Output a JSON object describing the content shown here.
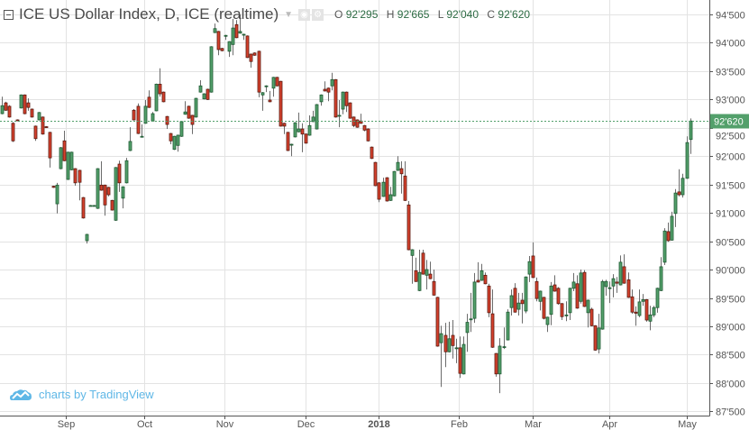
{
  "header": {
    "title": "ICE US Dollar Index, D, ICE (realtime)",
    "ohlc": [
      {
        "label": "O",
        "value": "92'295"
      },
      {
        "label": "H",
        "value": "92'665"
      },
      {
        "label": "L",
        "value": "92'040"
      },
      {
        "label": "C",
        "value": "92'620"
      }
    ]
  },
  "branding": {
    "text": "charts by TradingView"
  },
  "colors": {
    "up": "#53a06b",
    "up_border": "#1f5a33",
    "down": "#d6412d",
    "down_border": "#5a1a10",
    "wick": "#6b6b6b",
    "last_line": "#53a06b",
    "grid": "#e3e3e3"
  },
  "chart_data": {
    "type": "candlestick",
    "title": "ICE US Dollar Index, D, ICE (realtime)",
    "ylim": [
      87.5,
      94.6
    ],
    "y_ticks": [
      {
        "value": 94.5,
        "label": "94'500"
      },
      {
        "value": 94.0,
        "label": "94'000"
      },
      {
        "value": 93.5,
        "label": "93'500"
      },
      {
        "value": 93.0,
        "label": "93'000"
      },
      {
        "value": 92.5,
        "label": "92'500"
      },
      {
        "value": 92.0,
        "label": "92'000"
      },
      {
        "value": 91.5,
        "label": "91'500"
      },
      {
        "value": 91.0,
        "label": "91'000"
      },
      {
        "value": 90.5,
        "label": "90'500"
      },
      {
        "value": 90.0,
        "label": "90'000"
      },
      {
        "value": 89.5,
        "label": "89'500"
      },
      {
        "value": 89.0,
        "label": "89'000"
      },
      {
        "value": 88.5,
        "label": "88'500"
      },
      {
        "value": 88.0,
        "label": "88'000"
      },
      {
        "value": 87.5,
        "label": "87'500"
      }
    ],
    "x_ticks": [
      {
        "index": 17.5,
        "label": "Sep",
        "bold": false
      },
      {
        "index": 38.8,
        "label": "Oct",
        "bold": false
      },
      {
        "index": 60.8,
        "label": "Nov",
        "bold": false
      },
      {
        "index": 82.9,
        "label": "Dec",
        "bold": false
      },
      {
        "index": 102.8,
        "label": "2018",
        "bold": true
      },
      {
        "index": 124.9,
        "label": "Feb",
        "bold": false
      },
      {
        "index": 145.1,
        "label": "Mar",
        "bold": false
      },
      {
        "index": 166.0,
        "label": "Apr",
        "bold": false
      },
      {
        "index": 187.0,
        "label": "May",
        "bold": false
      }
    ],
    "last_price": {
      "value": 92.62,
      "label": "92'620"
    },
    "candles_format": [
      "open",
      "high",
      "low",
      "close"
    ],
    "candles": [
      [
        92.75,
        93.05,
        92.74,
        92.89
      ],
      [
        92.94,
        92.96,
        92.8,
        92.81
      ],
      [
        92.88,
        92.9,
        92.68,
        92.69
      ],
      [
        92.58,
        92.6,
        92.25,
        92.27
      ],
      [
        92.64,
        92.65,
        92.62,
        92.63
      ],
      [
        92.85,
        93.09,
        92.84,
        93.08
      ],
      [
        93.08,
        93.09,
        92.74,
        92.75
      ],
      [
        92.94,
        93.02,
        92.8,
        92.86
      ],
      [
        92.83,
        92.84,
        92.68,
        92.69
      ],
      [
        92.53,
        92.54,
        92.27,
        92.31
      ],
      [
        92.64,
        92.78,
        92.63,
        92.77
      ],
      [
        92.69,
        92.7,
        92.38,
        92.39
      ],
      [
        92.52,
        92.53,
        92.5,
        92.51
      ],
      [
        92.42,
        92.43,
        91.8,
        91.97
      ],
      [
        91.47,
        91.48,
        91.44,
        91.45
      ],
      [
        91.16,
        91.53,
        90.99,
        91.49
      ],
      [
        91.78,
        92.16,
        91.77,
        92.15
      ],
      [
        92.27,
        92.45,
        91.91,
        91.92
      ],
      [
        91.59,
        92.08,
        91.58,
        92.07
      ],
      [
        91.76,
        92.08,
        91.75,
        92.07
      ],
      [
        91.78,
        91.79,
        91.48,
        91.53
      ],
      [
        91.75,
        91.76,
        91.22,
        91.54
      ],
      [
        91.27,
        91.28,
        90.9,
        90.91
      ],
      [
        90.51,
        90.63,
        90.46,
        90.62
      ],
      [
        91.13,
        91.14,
        91.12,
        91.13
      ],
      [
        91.13,
        91.14,
        91.12,
        91.13
      ],
      [
        91.08,
        91.79,
        91.07,
        91.78
      ],
      [
        91.49,
        91.91,
        91.39,
        91.4
      ],
      [
        91.49,
        91.5,
        90.95,
        91.14
      ],
      [
        91.45,
        91.46,
        91.29,
        91.32
      ],
      [
        91.22,
        91.23,
        91.04,
        91.05
      ],
      [
        90.87,
        91.81,
        90.86,
        91.8
      ],
      [
        91.86,
        91.92,
        91.37,
        91.53
      ],
      [
        91.26,
        91.47,
        91.08,
        91.46
      ],
      [
        91.53,
        91.97,
        91.52,
        91.92
      ],
      [
        92.1,
        92.51,
        92.09,
        92.26
      ],
      [
        92.81,
        92.83,
        92.63,
        92.64
      ],
      [
        92.88,
        92.93,
        92.39,
        92.4
      ],
      [
        92.35,
        92.56,
        92.34,
        92.35
      ],
      [
        92.58,
        92.99,
        92.57,
        92.88
      ],
      [
        93.04,
        93.16,
        92.85,
        92.86
      ],
      [
        92.62,
        92.78,
        92.61,
        92.75
      ],
      [
        92.8,
        93.28,
        92.79,
        93.27
      ],
      [
        93.27,
        93.55,
        93.05,
        93.1
      ],
      [
        93.13,
        93.14,
        92.95,
        92.96
      ],
      [
        92.7,
        92.71,
        92.48,
        92.56
      ],
      [
        92.4,
        92.41,
        92.21,
        92.27
      ],
      [
        92.12,
        92.36,
        92.11,
        92.35
      ],
      [
        92.19,
        92.38,
        92.08,
        92.37
      ],
      [
        92.35,
        92.62,
        92.34,
        92.61
      ],
      [
        92.74,
        92.97,
        92.73,
        92.78
      ],
      [
        92.88,
        92.89,
        92.66,
        92.67
      ],
      [
        92.72,
        92.73,
        92.39,
        92.56
      ],
      [
        92.69,
        93.03,
        92.68,
        93.02
      ],
      [
        93.13,
        93.34,
        93.12,
        93.24
      ],
      [
        93.01,
        93.11,
        93.0,
        93.1
      ],
      [
        93.18,
        93.19,
        92.99,
        93.0
      ],
      [
        93.13,
        93.94,
        93.12,
        93.93
      ],
      [
        94.18,
        94.34,
        94.17,
        94.25
      ],
      [
        94.2,
        94.21,
        93.78,
        93.88
      ],
      [
        93.9,
        93.91,
        93.85,
        93.86
      ],
      [
        94.13,
        94.14,
        94.05,
        94.13
      ],
      [
        93.85,
        94.03,
        93.75,
        94.02
      ],
      [
        93.97,
        94.42,
        93.78,
        94.26
      ],
      [
        94.32,
        94.4,
        94.08,
        94.09
      ],
      [
        94.17,
        94.5,
        94.16,
        94.2
      ],
      [
        94.15,
        94.16,
        94.05,
        94.15
      ],
      [
        94.12,
        94.13,
        93.73,
        93.74
      ],
      [
        93.8,
        93.81,
        93.56,
        93.67
      ],
      [
        93.82,
        93.83,
        93.77,
        93.78
      ],
      [
        93.85,
        93.86,
        93.04,
        93.13
      ],
      [
        93.08,
        93.13,
        92.8,
        93.12
      ],
      [
        93.24,
        93.25,
        93.13,
        93.24
      ],
      [
        92.99,
        93.15,
        92.95,
        92.96
      ],
      [
        93.2,
        93.4,
        93.05,
        93.39
      ],
      [
        93.39,
        93.4,
        93.23,
        93.24
      ],
      [
        93.32,
        93.33,
        92.52,
        92.53
      ],
      [
        92.58,
        92.59,
        92.39,
        92.53
      ],
      [
        92.42,
        92.43,
        92.09,
        92.1
      ],
      [
        92.21,
        92.22,
        92.0,
        92.21
      ],
      [
        92.34,
        92.6,
        92.33,
        92.59
      ],
      [
        92.43,
        92.77,
        92.42,
        92.48
      ],
      [
        92.48,
        92.58,
        92.07,
        92.39
      ],
      [
        92.39,
        92.4,
        92.22,
        92.23
      ],
      [
        92.37,
        92.72,
        92.36,
        92.54
      ],
      [
        92.61,
        92.8,
        92.6,
        92.69
      ],
      [
        92.48,
        92.92,
        92.47,
        92.91
      ],
      [
        92.96,
        93.09,
        92.89,
        93.08
      ],
      [
        93.18,
        93.32,
        93.14,
        93.15
      ],
      [
        93.2,
        93.21,
        92.97,
        93.13
      ],
      [
        93.24,
        93.47,
        93.16,
        93.35
      ],
      [
        93.35,
        93.36,
        92.68,
        92.69
      ],
      [
        92.72,
        92.99,
        92.51,
        92.72
      ],
      [
        92.83,
        93.14,
        92.74,
        93.13
      ],
      [
        93.13,
        93.14,
        92.78,
        92.89
      ],
      [
        92.94,
        92.95,
        92.66,
        92.67
      ],
      [
        92.69,
        92.7,
        92.51,
        92.54
      ],
      [
        92.64,
        92.65,
        92.5,
        92.51
      ],
      [
        92.62,
        92.75,
        92.57,
        92.58
      ],
      [
        92.54,
        92.55,
        92.44,
        92.46
      ],
      [
        92.48,
        92.49,
        92.26,
        92.27
      ],
      [
        92.16,
        92.17,
        91.95,
        91.96
      ],
      [
        91.89,
        91.9,
        91.47,
        91.48
      ],
      [
        91.53,
        91.54,
        91.19,
        91.24
      ],
      [
        91.29,
        91.62,
        91.28,
        91.54
      ],
      [
        91.62,
        91.63,
        91.2,
        91.21
      ],
      [
        91.22,
        91.46,
        91.21,
        91.32
      ],
      [
        91.3,
        91.74,
        91.29,
        91.73
      ],
      [
        91.75,
        92.0,
        91.74,
        91.89
      ],
      [
        91.78,
        91.91,
        91.34,
        91.69
      ],
      [
        91.65,
        91.91,
        91.21,
        91.22
      ],
      [
        91.14,
        91.21,
        90.34,
        90.35
      ],
      [
        90.25,
        90.36,
        89.75,
        90.35
      ],
      [
        89.98,
        90.21,
        89.78,
        89.79
      ],
      [
        89.63,
        90.35,
        89.62,
        89.95
      ],
      [
        90.29,
        90.35,
        89.91,
        89.92
      ],
      [
        89.9,
        90.17,
        89.65,
        90.0
      ],
      [
        89.92,
        90.14,
        89.83,
        89.84
      ],
      [
        89.79,
        90.0,
        89.54,
        89.55
      ],
      [
        89.51,
        89.52,
        88.64,
        88.65
      ],
      [
        88.71,
        89.01,
        87.93,
        88.87
      ],
      [
        88.84,
        89.06,
        88.28,
        88.55
      ],
      [
        88.55,
        89.08,
        88.54,
        88.78
      ],
      [
        88.84,
        89.11,
        88.43,
        88.66
      ],
      [
        88.62,
        88.78,
        88.35,
        88.62
      ],
      [
        88.62,
        88.82,
        88.09,
        88.17
      ],
      [
        88.16,
        88.82,
        88.15,
        88.68
      ],
      [
        88.89,
        89.22,
        88.55,
        89.07
      ],
      [
        89.12,
        89.59,
        88.9,
        89.13
      ],
      [
        89.14,
        89.94,
        89.06,
        89.78
      ],
      [
        89.81,
        90.13,
        89.77,
        89.78
      ],
      [
        89.81,
        90.1,
        89.8,
        89.98
      ],
      [
        89.9,
        89.95,
        89.74,
        89.75
      ],
      [
        89.71,
        89.75,
        89.16,
        89.24
      ],
      [
        89.22,
        89.65,
        88.62,
        88.63
      ],
      [
        88.52,
        88.53,
        88.11,
        88.16
      ],
      [
        88.16,
        88.79,
        87.82,
        88.65
      ],
      [
        88.63,
        88.98,
        88.6,
        88.64
      ],
      [
        88.76,
        89.3,
        88.75,
        89.25
      ],
      [
        89.33,
        89.65,
        89.19,
        89.54
      ],
      [
        89.67,
        89.76,
        89.24,
        89.25
      ],
      [
        89.3,
        89.59,
        89.19,
        89.41
      ],
      [
        89.46,
        89.59,
        89.05,
        89.4
      ],
      [
        89.27,
        89.88,
        89.23,
        89.87
      ],
      [
        89.92,
        90.24,
        89.78,
        90.14
      ],
      [
        90.24,
        90.48,
        89.85,
        89.86
      ],
      [
        89.79,
        89.86,
        89.44,
        89.49
      ],
      [
        89.44,
        89.63,
        89.28,
        89.62
      ],
      [
        89.51,
        89.52,
        89.12,
        89.14
      ],
      [
        89.03,
        89.17,
        88.9,
        89.16
      ],
      [
        89.21,
        89.78,
        89.02,
        89.71
      ],
      [
        89.73,
        89.9,
        89.61,
        89.62
      ],
      [
        89.67,
        89.69,
        89.38,
        89.4
      ],
      [
        89.4,
        89.41,
        89.11,
        89.17
      ],
      [
        89.2,
        89.44,
        89.09,
        89.2
      ],
      [
        89.24,
        89.68,
        89.11,
        89.67
      ],
      [
        89.67,
        89.94,
        89.62,
        89.78
      ],
      [
        89.75,
        89.9,
        89.31,
        89.32
      ],
      [
        89.44,
        90.0,
        89.4,
        89.94
      ],
      [
        89.95,
        89.99,
        89.34,
        89.35
      ],
      [
        89.24,
        89.47,
        88.98,
        89.46
      ],
      [
        89.3,
        89.33,
        89.0,
        89.01
      ],
      [
        89.01,
        89.02,
        88.57,
        88.58
      ],
      [
        88.6,
        89.22,
        88.52,
        88.97
      ],
      [
        88.95,
        89.82,
        88.94,
        89.79
      ],
      [
        89.7,
        89.82,
        89.54,
        89.79
      ],
      [
        89.68,
        89.79,
        89.41,
        89.68
      ],
      [
        89.71,
        89.92,
        89.51,
        89.84
      ],
      [
        89.78,
        89.87,
        89.59,
        89.76
      ],
      [
        89.73,
        90.25,
        89.72,
        90.13
      ],
      [
        90.05,
        90.27,
        89.75,
        89.76
      ],
      [
        89.82,
        89.95,
        89.5,
        89.51
      ],
      [
        89.52,
        89.65,
        89.22,
        89.25
      ],
      [
        89.25,
        89.35,
        89.01,
        89.23
      ],
      [
        89.19,
        89.65,
        89.16,
        89.43
      ],
      [
        89.44,
        89.57,
        89.36,
        89.47
      ],
      [
        89.47,
        89.48,
        89.08,
        89.11
      ],
      [
        89.09,
        89.36,
        88.93,
        89.2
      ],
      [
        89.2,
        89.36,
        89.16,
        89.33
      ],
      [
        89.33,
        89.68,
        89.24,
        89.67
      ],
      [
        89.63,
        90.22,
        89.62,
        90.05
      ],
      [
        90.13,
        90.73,
        90.08,
        90.68
      ],
      [
        90.67,
        90.83,
        90.49,
        90.51
      ],
      [
        90.52,
        91.02,
        90.51,
        90.94
      ],
      [
        90.99,
        91.42,
        90.75,
        91.35
      ],
      [
        91.37,
        91.77,
        91.29,
        91.32
      ],
      [
        91.32,
        91.69,
        91.27,
        91.61
      ],
      [
        91.61,
        92.35,
        91.6,
        92.24
      ],
      [
        92.295,
        92.665,
        92.04,
        92.62
      ]
    ]
  }
}
